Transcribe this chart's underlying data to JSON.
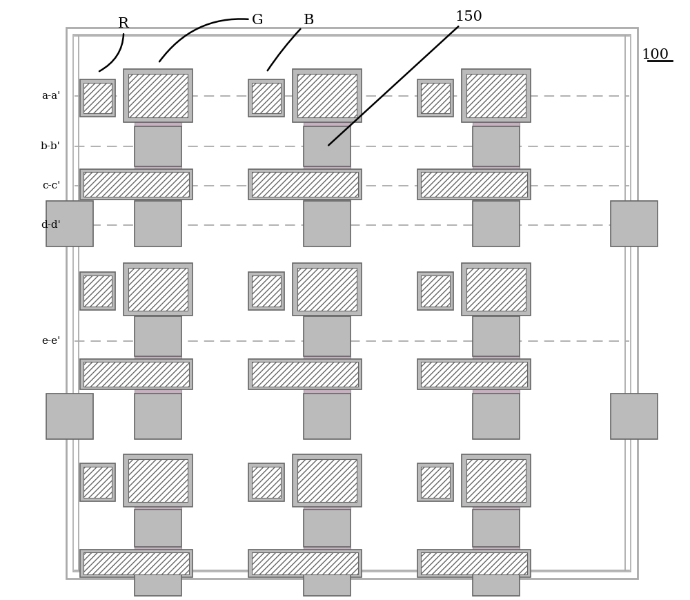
{
  "fig_width": 10.0,
  "fig_height": 8.69,
  "bg_color": "#ffffff",
  "dark_gray": "#666666",
  "mid_gray": "#999999",
  "light_gray": "#bbbbbb",
  "border_gray": "#aaaaaa",
  "pink_fill": "#c8b0c0",
  "label_lines": [
    "a-a'",
    "b-b'",
    "c-c'",
    "d-d'",
    "e-e'"
  ]
}
